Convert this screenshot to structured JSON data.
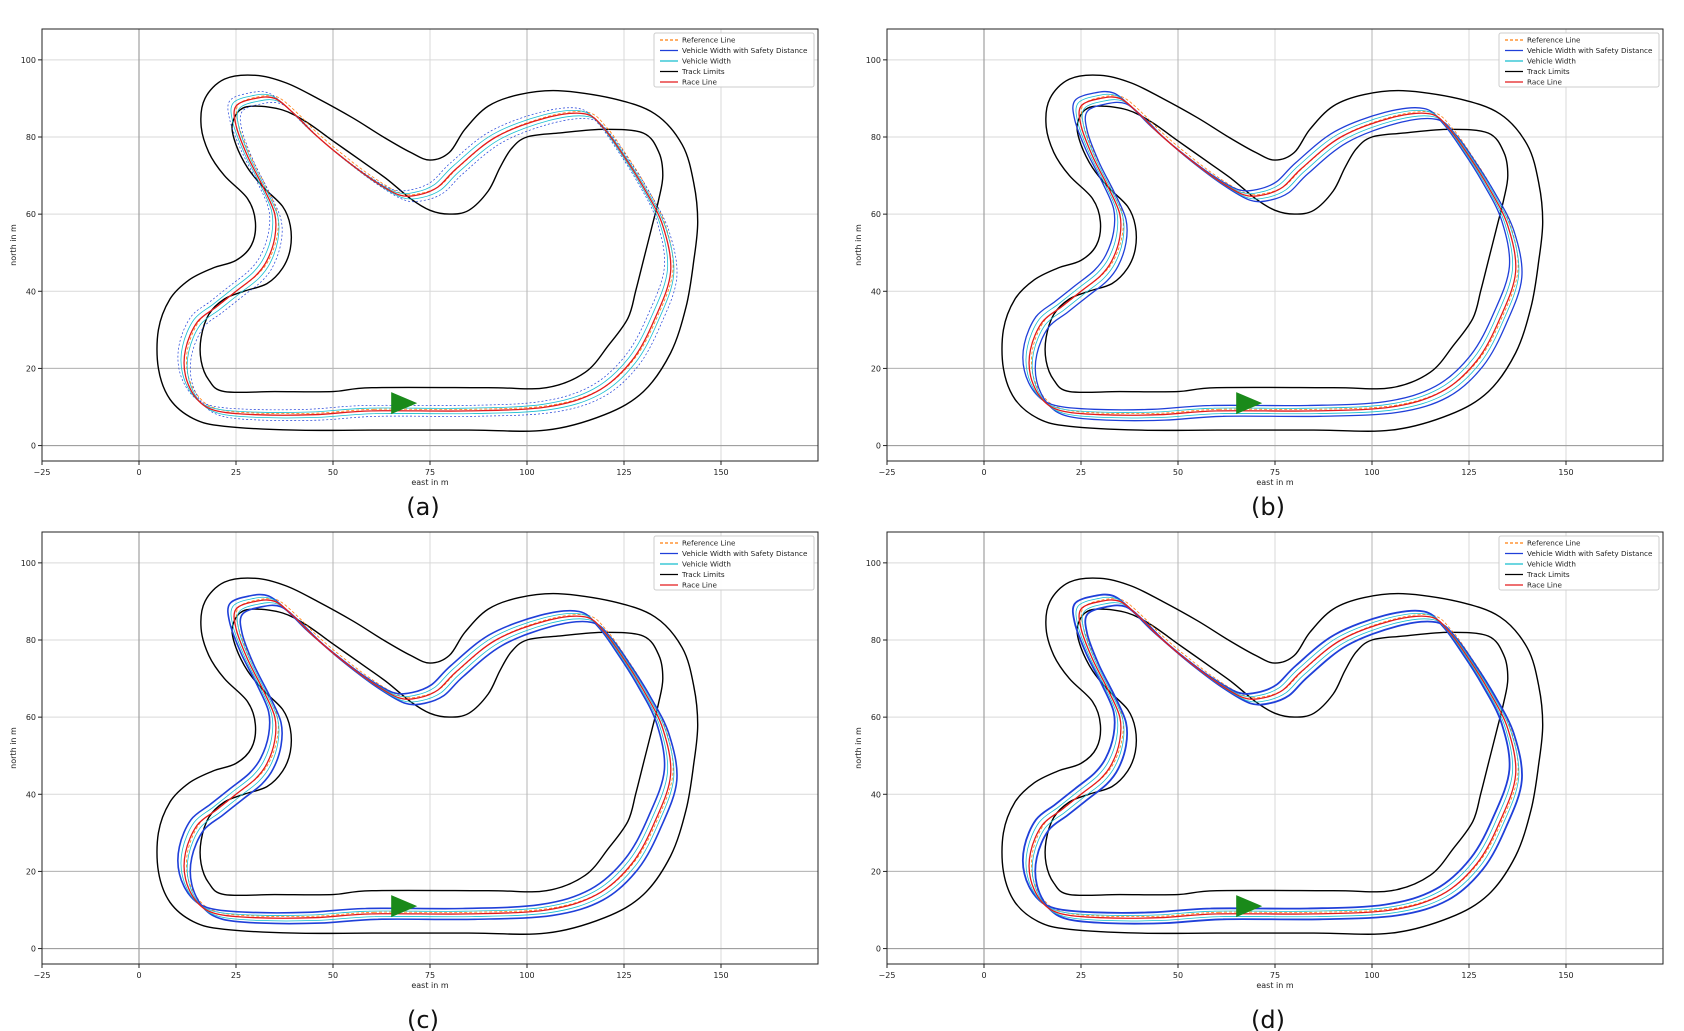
{
  "figure": {
    "captions": [
      "(a)",
      "(b)",
      "(c)",
      "(d)"
    ]
  },
  "colors": {
    "reference_line": "#ff7f0e",
    "vehicle_width_safety": "#1f3fd9",
    "vehicle_width": "#17becf",
    "track_limits": "#000000",
    "race_line": "#e31a1c",
    "start_marker": "#1a8a1a",
    "grid": "#d9d9d9"
  },
  "chart_data": [
    {
      "type": "line",
      "panel": "(a)",
      "xlabel": "east in m",
      "ylabel": "north in m",
      "xlim": [
        -25,
        175
      ],
      "ylim": [
        -4,
        108
      ],
      "xticks": [
        -25,
        0,
        25,
        50,
        75,
        100,
        125,
        150
      ],
      "yticks": [
        0,
        20,
        40,
        60,
        80,
        100
      ],
      "grid": true,
      "legend_position": "top-right",
      "legend": [
        "Reference Line",
        "Vehicle Width with Safety Distance",
        "Vehicle Width",
        "Track Limits",
        "Race Line"
      ],
      "series": [
        {
          "name": "Race Line",
          "x": [
            60,
            85,
            105,
            118,
            127,
            133,
            137,
            135,
            130,
            125,
            120,
            115,
            105,
            92,
            82,
            77,
            72,
            67,
            60,
            52,
            45,
            40,
            35,
            30,
            25,
            25,
            28,
            32,
            35,
            35,
            33,
            30,
            25,
            20,
            15,
            12,
            12,
            15,
            20,
            30,
            45,
            60
          ],
          "y": [
            9,
            9,
            10,
            14,
            22,
            33,
            45,
            57,
            67,
            75,
            82,
            86,
            85,
            80,
            72,
            67,
            65,
            65,
            69,
            75,
            81,
            86,
            90,
            90,
            88,
            83,
            75,
            67,
            60,
            54,
            48,
            44,
            40,
            36,
            32,
            25,
            18,
            12,
            9,
            8,
            8,
            9
          ]
        }
      ]
    },
    {
      "type": "line",
      "panel": "(b)",
      "xlabel": "east in m",
      "ylabel": "north in m",
      "xlim": [
        -25,
        175
      ],
      "ylim": [
        -4,
        108
      ],
      "xticks": [
        -25,
        0,
        25,
        50,
        75,
        100,
        125,
        150
      ],
      "yticks": [
        0,
        20,
        40,
        60,
        80,
        100
      ],
      "grid": true,
      "legend_position": "top-right",
      "legend": [
        "Reference Line",
        "Vehicle Width with Safety Distance",
        "Vehicle Width",
        "Track Limits",
        "Race Line"
      ],
      "series": [
        {
          "name": "Race Line",
          "x": [
            60,
            85,
            105,
            118,
            127,
            133,
            137,
            135,
            130,
            125,
            120,
            115,
            105,
            92,
            82,
            77,
            72,
            67,
            60,
            52,
            45,
            40,
            35,
            30,
            25,
            25,
            28,
            32,
            35,
            35,
            33,
            30,
            25,
            20,
            15,
            12,
            12,
            15,
            20,
            30,
            45,
            60
          ],
          "y": [
            9,
            9,
            10,
            14,
            22,
            33,
            45,
            57,
            67,
            75,
            82,
            86,
            85,
            80,
            72,
            67,
            65,
            65,
            69,
            75,
            81,
            86,
            90,
            90,
            88,
            83,
            75,
            67,
            60,
            54,
            48,
            44,
            40,
            36,
            32,
            25,
            18,
            12,
            9,
            8,
            8,
            9
          ]
        }
      ]
    },
    {
      "type": "line",
      "panel": "(c)",
      "xlabel": "east in m",
      "ylabel": "north in m",
      "xlim": [
        -25,
        175
      ],
      "ylim": [
        -4,
        108
      ],
      "xticks": [
        -25,
        0,
        25,
        50,
        75,
        100,
        125,
        150
      ],
      "yticks": [
        0,
        20,
        40,
        60,
        80,
        100
      ],
      "grid": true,
      "legend_position": "top-right",
      "legend": [
        "Reference Line",
        "Vehicle Width with Safety Distance",
        "Vehicle Width",
        "Track Limits",
        "Race Line"
      ],
      "series": [
        {
          "name": "Race Line",
          "x": [
            60,
            85,
            105,
            118,
            127,
            133,
            137,
            135,
            130,
            125,
            120,
            115,
            105,
            92,
            82,
            77,
            72,
            67,
            60,
            52,
            45,
            40,
            35,
            30,
            25,
            25,
            28,
            32,
            35,
            35,
            33,
            30,
            25,
            20,
            15,
            12,
            12,
            15,
            20,
            30,
            45,
            60
          ],
          "y": [
            9,
            9,
            10,
            14,
            22,
            33,
            45,
            57,
            67,
            75,
            82,
            86,
            85,
            80,
            72,
            67,
            65,
            65,
            69,
            75,
            81,
            86,
            90,
            90,
            88,
            83,
            75,
            67,
            60,
            54,
            48,
            44,
            40,
            36,
            32,
            25,
            18,
            12,
            9,
            8,
            8,
            9
          ]
        }
      ]
    },
    {
      "type": "line",
      "panel": "(d)",
      "xlabel": "east in m",
      "ylabel": "north in m",
      "xlim": [
        -25,
        175
      ],
      "ylim": [
        -4,
        108
      ],
      "xticks": [
        -25,
        0,
        25,
        50,
        75,
        100,
        125,
        150
      ],
      "yticks": [
        0,
        20,
        40,
        60,
        80,
        100
      ],
      "grid": true,
      "legend_position": "top-right",
      "legend": [
        "Reference Line",
        "Vehicle Width with Safety Distance",
        "Vehicle Width",
        "Track Limits",
        "Race Line"
      ],
      "series": [
        {
          "name": "Race Line",
          "x": [
            60,
            85,
            105,
            118,
            127,
            133,
            137,
            135,
            130,
            125,
            120,
            115,
            105,
            92,
            82,
            77,
            72,
            67,
            60,
            52,
            45,
            40,
            35,
            30,
            25,
            25,
            28,
            32,
            35,
            35,
            33,
            30,
            25,
            20,
            15,
            12,
            12,
            15,
            20,
            30,
            45,
            60
          ],
          "y": [
            9,
            9,
            10,
            14,
            22,
            33,
            45,
            57,
            67,
            75,
            82,
            86,
            85,
            80,
            72,
            67,
            65,
            65,
            69,
            75,
            81,
            86,
            90,
            90,
            88,
            83,
            75,
            67,
            60,
            54,
            48,
            44,
            40,
            36,
            32,
            25,
            18,
            12,
            9,
            8,
            8,
            9
          ]
        }
      ]
    }
  ]
}
